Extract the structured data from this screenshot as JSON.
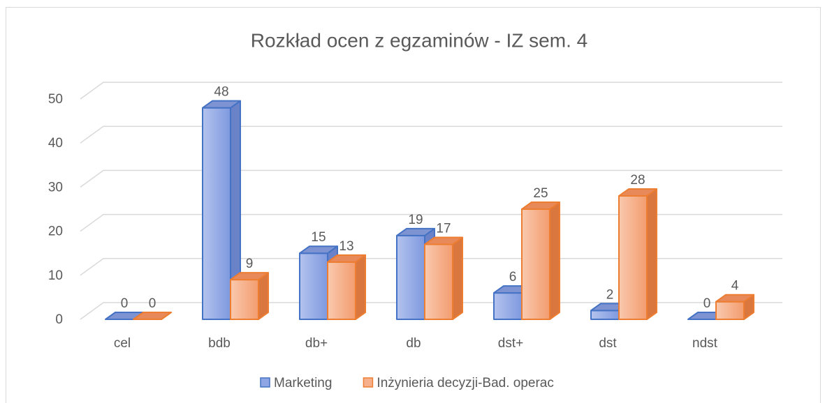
{
  "chart_data": {
    "type": "bar3d",
    "title": "Rozkład ocen z egzaminów  - IZ sem. 4",
    "categories": [
      "cel",
      "bdb",
      "db+",
      "db",
      "dst+",
      "dst",
      "ndst"
    ],
    "series": [
      {
        "name": "Marketing",
        "color": "#8ea6e4",
        "values": [
          0,
          48,
          15,
          19,
          6,
          2,
          0
        ]
      },
      {
        "name": "Inżynieria decyzji-Bad. operac",
        "color": "#f6b08c",
        "values": [
          0,
          9,
          13,
          17,
          25,
          28,
          4
        ]
      }
    ],
    "ylim": [
      0,
      50
    ],
    "yticks": [
      0,
      10,
      20,
      30,
      40,
      50
    ],
    "grid": true,
    "legend": "bottom"
  }
}
